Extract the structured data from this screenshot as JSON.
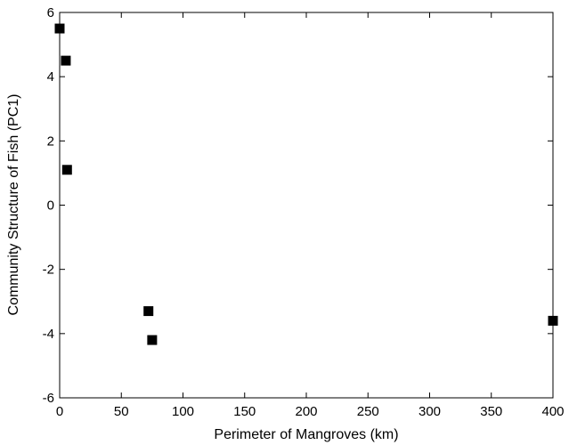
{
  "chart_data": {
    "type": "scatter",
    "title": "",
    "xlabel": "Perimeter of Mangroves (km)",
    "ylabel": "Community Structure of Fish (PC1)",
    "xlim": [
      0,
      400
    ],
    "ylim": [
      -6,
      6
    ],
    "xticks": [
      0,
      50,
      100,
      150,
      200,
      250,
      300,
      350,
      400
    ],
    "yticks": [
      -6,
      -4,
      -2,
      0,
      2,
      4,
      6
    ],
    "grid": false,
    "marker": "square",
    "marker_color": "#000000",
    "points": [
      {
        "x": 0,
        "y": 5.5
      },
      {
        "x": 5,
        "y": 4.5
      },
      {
        "x": 6,
        "y": 1.1
      },
      {
        "x": 72,
        "y": -3.3
      },
      {
        "x": 75,
        "y": -4.2
      },
      {
        "x": 400,
        "y": -3.6
      }
    ]
  }
}
